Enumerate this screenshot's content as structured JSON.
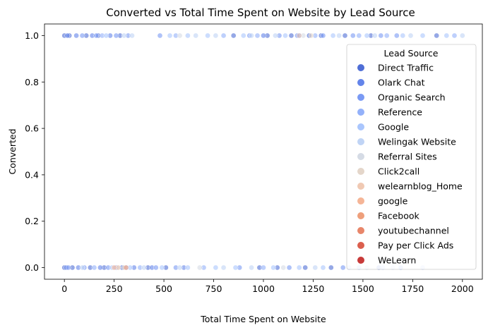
{
  "chart_data": {
    "type": "scatter",
    "title": "Converted vs Total Time Spent on Website by Lead Source",
    "xlabel": "Total Time Spent on Website",
    "ylabel": "Converted",
    "xlim": [
      -100,
      2100
    ],
    "ylim": [
      -0.05,
      1.05
    ],
    "x_ticks": [
      0,
      250,
      500,
      750,
      1000,
      1250,
      1500,
      1750,
      2000
    ],
    "y_ticks": [
      0.0,
      0.2,
      0.4,
      0.6,
      0.8,
      1.0
    ],
    "x_tick_labels": [
      "0",
      "250",
      "500",
      "750",
      "1000",
      "1250",
      "1500",
      "1750",
      "2000"
    ],
    "y_tick_labels": [
      "0.0",
      "0.2",
      "0.4",
      "0.6",
      "0.8",
      "1.0"
    ],
    "grid": false,
    "legend": {
      "title": "Lead Source",
      "placement": "right"
    },
    "series": [
      {
        "name": "Direct Traffic",
        "color": "#4f6ed6",
        "points": [
          [
            0,
            1
          ],
          [
            25,
            1
          ],
          [
            110,
            1
          ],
          [
            170,
            1
          ],
          [
            280,
            1
          ],
          [
            850,
            1
          ],
          [
            1020,
            1
          ],
          [
            1140,
            1
          ],
          [
            1230,
            1
          ],
          [
            1290,
            1
          ],
          [
            1410,
            1
          ],
          [
            1540,
            1
          ],
          [
            1870,
            1
          ],
          [
            0,
            0
          ],
          [
            40,
            0
          ],
          [
            130,
            0
          ],
          [
            200,
            0
          ],
          [
            290,
            0
          ],
          [
            420,
            0
          ],
          [
            510,
            0
          ],
          [
            980,
            0
          ],
          [
            1070,
            0
          ],
          [
            1210,
            0
          ],
          [
            1340,
            0
          ],
          [
            1580,
            0
          ]
        ]
      },
      {
        "name": "Olark Chat",
        "color": "#6384ea",
        "points": [
          [
            15,
            1
          ],
          [
            60,
            1
          ],
          [
            140,
            1
          ],
          [
            230,
            1
          ],
          [
            1000,
            1
          ],
          [
            1180,
            1
          ],
          [
            10,
            0
          ],
          [
            70,
            0
          ],
          [
            180,
            0
          ],
          [
            260,
            0
          ],
          [
            350,
            0
          ],
          [
            440,
            0
          ],
          [
            600,
            0
          ]
        ]
      },
      {
        "name": "Organic Search",
        "color": "#7a9af4",
        "points": [
          [
            90,
            1
          ],
          [
            160,
            1
          ],
          [
            260,
            1
          ],
          [
            320,
            1
          ],
          [
            480,
            1
          ],
          [
            930,
            1
          ],
          [
            1080,
            1
          ],
          [
            1170,
            1
          ],
          [
            1300,
            1
          ],
          [
            1450,
            1
          ],
          [
            1590,
            1
          ],
          [
            1670,
            1
          ],
          [
            20,
            0
          ],
          [
            100,
            0
          ],
          [
            220,
            0
          ],
          [
            310,
            0
          ],
          [
            460,
            0
          ],
          [
            560,
            0
          ],
          [
            880,
            0
          ],
          [
            1130,
            0
          ],
          [
            1400,
            0
          ],
          [
            1690,
            0
          ]
        ]
      },
      {
        "name": "Reference",
        "color": "#93b1fa",
        "points": [
          [
            190,
            1
          ],
          [
            560,
            1
          ],
          [
            800,
            1
          ],
          [
            970,
            1
          ],
          [
            1260,
            1
          ],
          [
            1480,
            1
          ],
          [
            1620,
            1
          ],
          [
            1960,
            1
          ],
          [
            150,
            0
          ],
          [
            380,
            0
          ],
          [
            700,
            0
          ],
          [
            1000,
            0
          ],
          [
            1480,
            0
          ]
        ]
      },
      {
        "name": "Google",
        "color": "#aac6fd",
        "points": [
          [
            210,
            1
          ],
          [
            530,
            1
          ],
          [
            620,
            1
          ],
          [
            720,
            1
          ],
          [
            900,
            1
          ],
          [
            1110,
            1
          ],
          [
            1350,
            1
          ],
          [
            1520,
            1
          ],
          [
            1700,
            1
          ],
          [
            1800,
            1
          ],
          [
            1920,
            1
          ],
          [
            240,
            0
          ],
          [
            330,
            0
          ],
          [
            490,
            0
          ],
          [
            620,
            0
          ],
          [
            760,
            0
          ],
          [
            860,
            0
          ],
          [
            1050,
            0
          ],
          [
            1180,
            0
          ],
          [
            1300,
            0
          ],
          [
            1430,
            0
          ],
          [
            1600,
            0
          ],
          [
            1800,
            0
          ]
        ]
      },
      {
        "name": "Welingak Website",
        "color": "#c0d4f5",
        "points": [
          [
            300,
            1
          ],
          [
            340,
            1
          ],
          [
            660,
            1
          ],
          [
            760,
            1
          ],
          [
            940,
            1
          ],
          [
            1060,
            1
          ],
          [
            1380,
            1
          ],
          [
            1560,
            1
          ],
          [
            1740,
            1
          ],
          [
            2000,
            1
          ],
          [
            90,
            0
          ],
          [
            400,
            0
          ],
          [
            580,
            0
          ],
          [
            800,
            0
          ],
          [
            940,
            0
          ],
          [
            1260,
            0
          ],
          [
            1520,
            0
          ],
          [
            1650,
            0
          ]
        ]
      },
      {
        "name": "Referral Sites",
        "color": "#d5dbe5",
        "points": [
          [
            580,
            1
          ],
          [
            1200,
            1
          ],
          [
            270,
            0
          ],
          [
            680,
            0
          ],
          [
            1100,
            0
          ]
        ]
      },
      {
        "name": "Click2call",
        "color": "#e4d6ca",
        "points": [
          [
            1240,
            1
          ],
          [
            300,
            0
          ]
        ]
      },
      {
        "name": "welearnblog_Home",
        "color": "#f0c9b3",
        "points": [
          [
            1180,
            1
          ],
          [
            270,
            0
          ]
        ]
      },
      {
        "name": "google",
        "color": "#f5b597",
        "points": [
          [
            250,
            0
          ]
        ]
      },
      {
        "name": "Facebook",
        "color": "#ee9f7b",
        "points": [
          [
            310,
            0
          ]
        ]
      },
      {
        "name": "youtubechannel",
        "color": "#e8866a",
        "points": []
      },
      {
        "name": "Pay per Click Ads",
        "color": "#db5f4e",
        "points": []
      },
      {
        "name": "WeLearn",
        "color": "#c83a39",
        "points": []
      }
    ]
  }
}
